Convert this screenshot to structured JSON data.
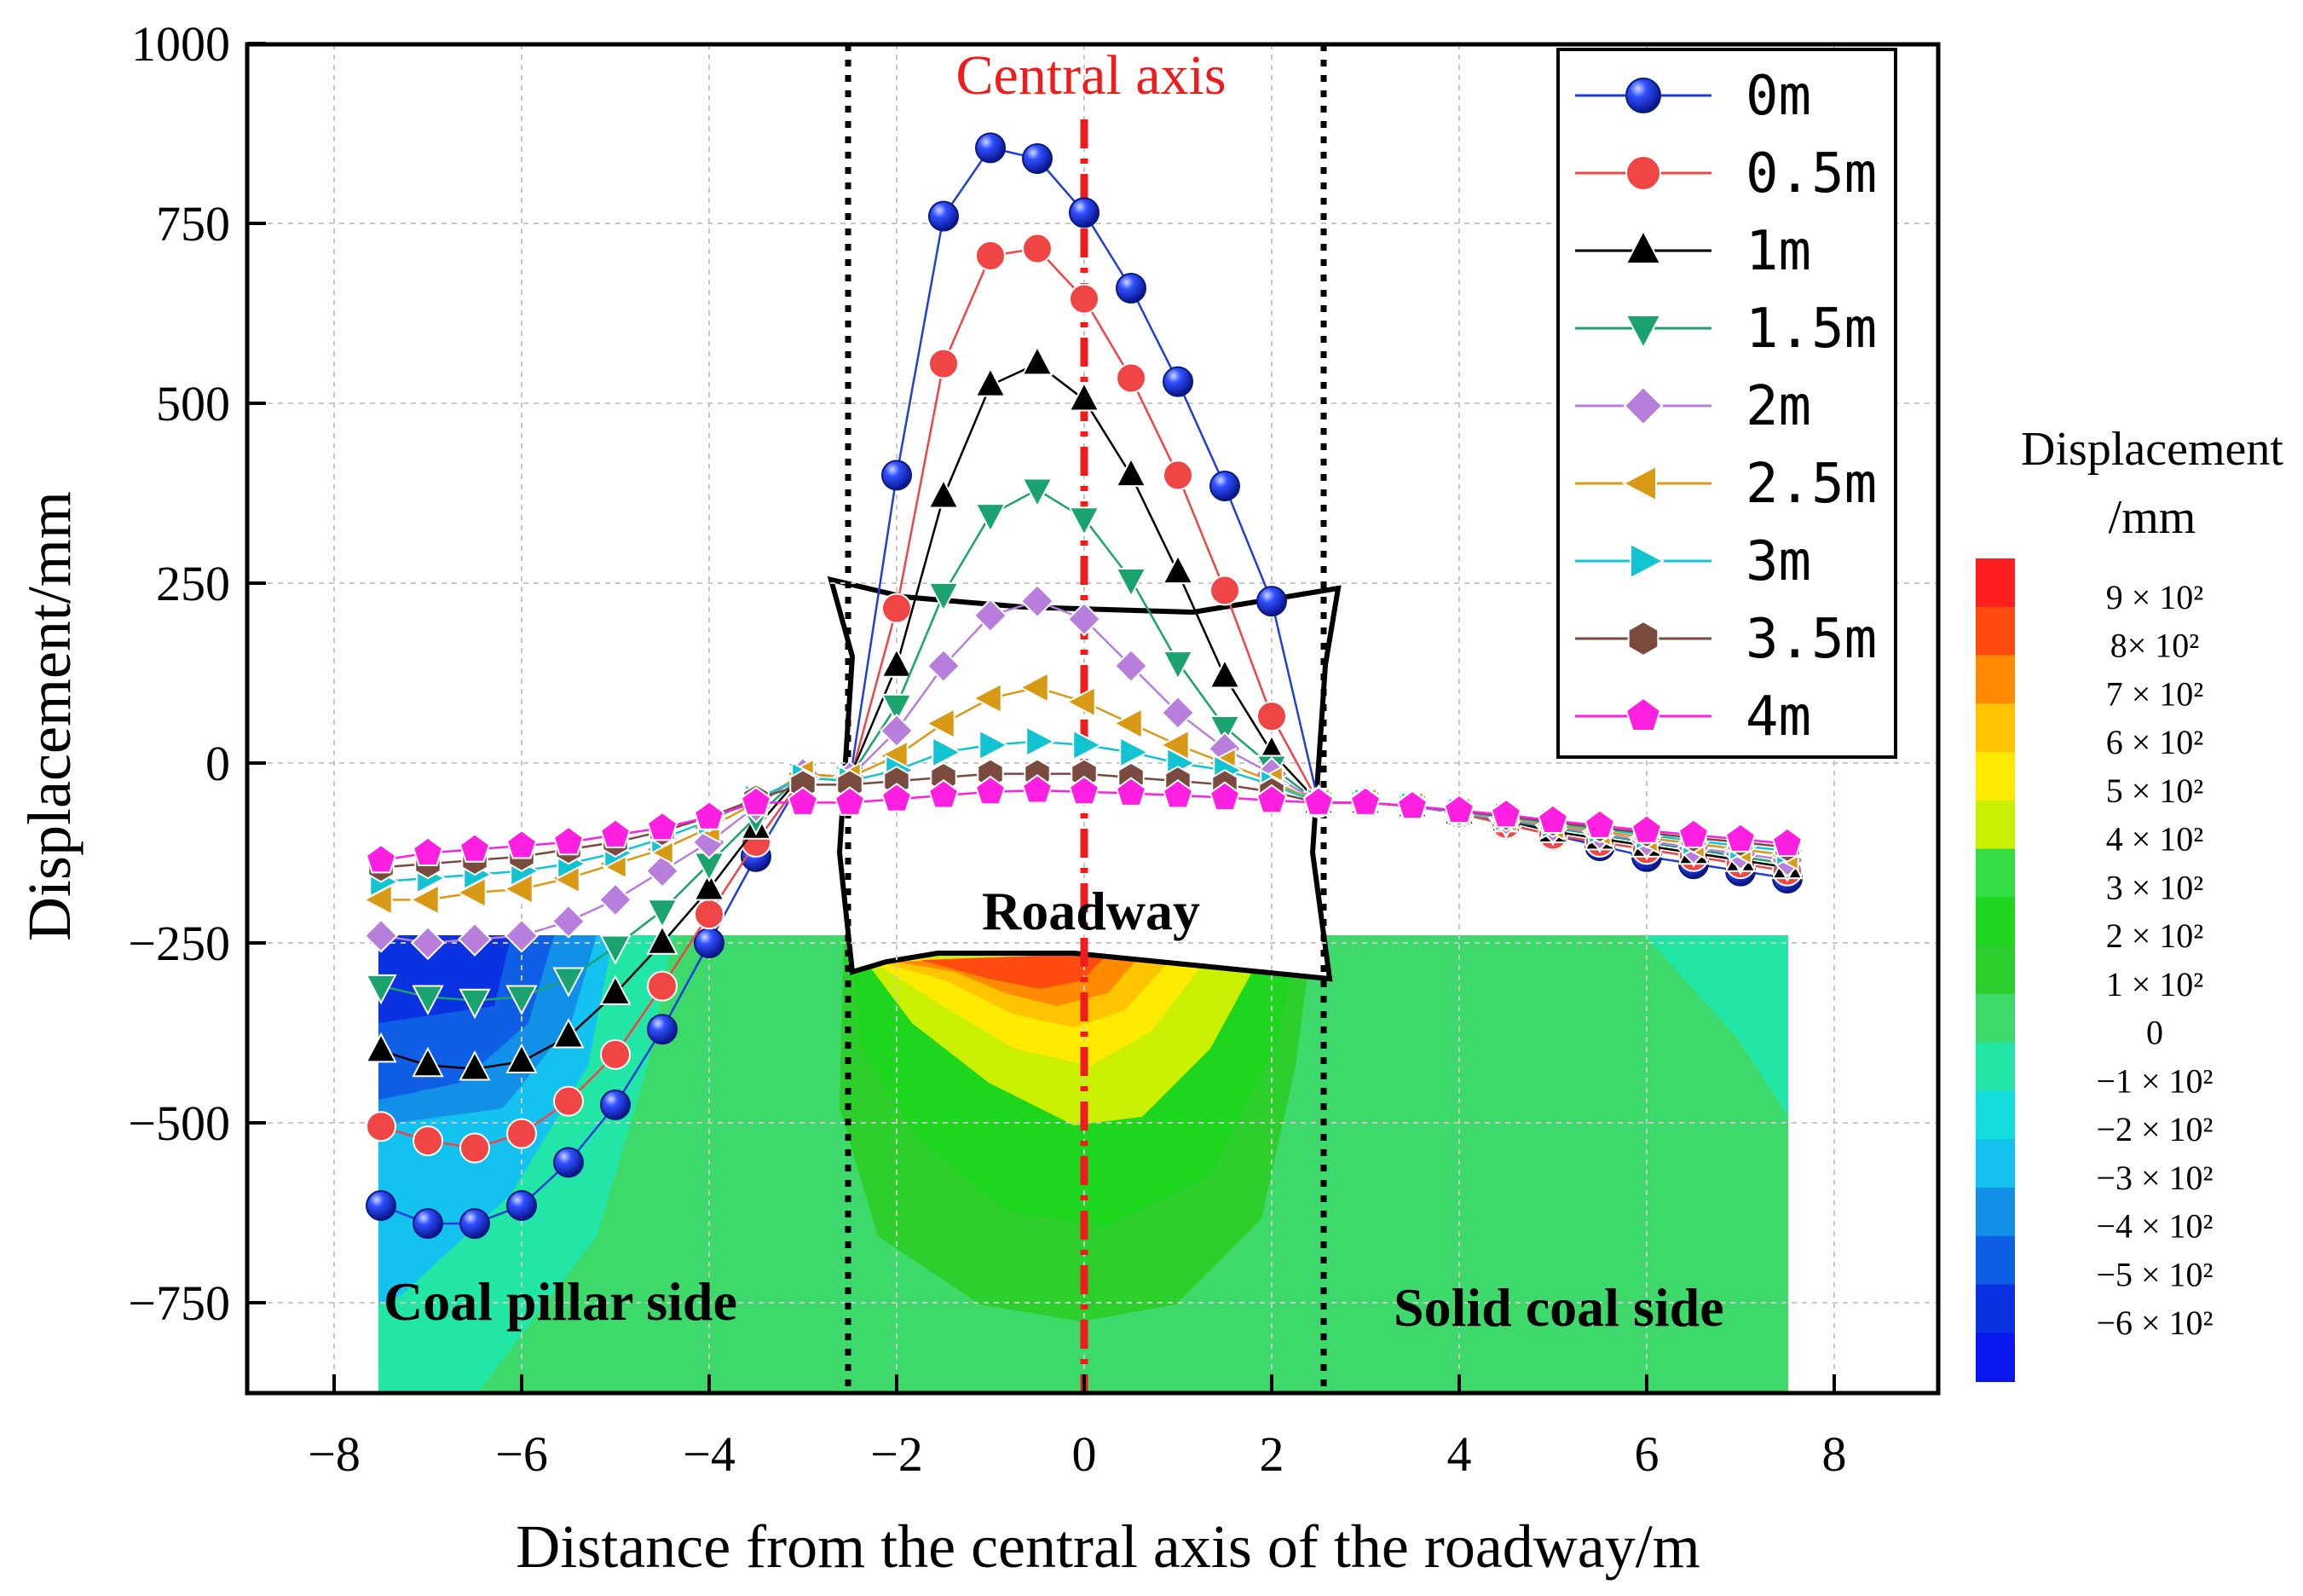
{
  "chart_data": {
    "type": "line",
    "title": "",
    "xlabel": "Distance from the central axis of the roadway/m",
    "ylabel": "Displacement/mm",
    "xlim": [
      -9,
      9
    ],
    "ylim": [
      -875,
      1000
    ],
    "x_ticks": [
      -8,
      -6,
      -4,
      -2,
      0,
      2,
      4,
      6,
      8
    ],
    "x_tick_labels": [
      "−8",
      "−6",
      "−4",
      "−2",
      "0",
      "2",
      "4",
      "6",
      "8"
    ],
    "y_ticks": [
      1000,
      750,
      500,
      250,
      0,
      -250,
      -500,
      -750
    ],
    "y_tick_labels": [
      "1000",
      "750",
      "500",
      "250",
      "0",
      "−250",
      "−500",
      "−750"
    ],
    "grid": true,
    "legend_position": "top-right",
    "x": [
      -7.5,
      -7,
      -6.5,
      -6,
      -5.5,
      -5,
      -4.5,
      -4,
      -3.5,
      -3,
      -2.5,
      -2,
      -1.5,
      -1,
      -0.5,
      0,
      0.5,
      1,
      1.5,
      2,
      2.5,
      3,
      3.5,
      4,
      4.5,
      5,
      5.5,
      6,
      6.5,
      7,
      7.5
    ],
    "series": [
      {
        "name": "0m",
        "color": "#1f3fd6",
        "marker": "sphere",
        "values": [
          -615,
          -640,
          -640,
          -615,
          -555,
          -475,
          -370,
          -250,
          -130,
          -20,
          -25,
          400,
          760,
          855,
          840,
          765,
          660,
          530,
          385,
          225,
          -55,
          -55,
          -60,
          -70,
          -85,
          -100,
          -115,
          -130,
          -140,
          -150,
          -160
        ]
      },
      {
        "name": "0.5m",
        "color": "#f04545",
        "marker": "circle",
        "values": [
          -505,
          -525,
          -535,
          -515,
          -470,
          -405,
          -310,
          -210,
          -110,
          -20,
          -25,
          215,
          555,
          705,
          715,
          645,
          535,
          400,
          240,
          65,
          -55,
          -55,
          -60,
          -70,
          -85,
          -100,
          -110,
          -120,
          -130,
          -140,
          -150
        ]
      },
      {
        "name": "1m",
        "color": "#000000",
        "marker": "triangle-up",
        "values": [
          -400,
          -420,
          -425,
          -415,
          -380,
          -320,
          -250,
          -175,
          -90,
          -15,
          -20,
          135,
          370,
          525,
          555,
          505,
          400,
          265,
          120,
          15,
          -55,
          -55,
          -60,
          -70,
          -80,
          -95,
          -105,
          -115,
          -125,
          -135,
          -145
        ]
      },
      {
        "name": "1.5m",
        "color": "#1aa36e",
        "marker": "triangle-down",
        "values": [
          -310,
          -325,
          -330,
          -325,
          -300,
          -255,
          -205,
          -140,
          -75,
          -15,
          -20,
          80,
          235,
          345,
          380,
          340,
          255,
          140,
          50,
          -5,
          -55,
          -55,
          -60,
          -70,
          -80,
          -90,
          -100,
          -110,
          -120,
          -130,
          -140
        ]
      },
      {
        "name": "2m",
        "color": "#b77fdb",
        "marker": "diamond",
        "values": [
          -240,
          -250,
          -245,
          -240,
          -220,
          -190,
          -150,
          -110,
          -60,
          -15,
          -20,
          45,
          135,
          205,
          225,
          200,
          135,
          70,
          20,
          -15,
          -55,
          -55,
          -60,
          -70,
          -78,
          -88,
          -98,
          -108,
          -118,
          -126,
          -135
        ]
      },
      {
        "name": "2.5m",
        "color": "#d89a14",
        "marker": "triangle-left",
        "values": [
          -190,
          -190,
          -180,
          -175,
          -160,
          -140,
          -120,
          -90,
          -55,
          -15,
          -20,
          10,
          55,
          90,
          105,
          85,
          55,
          25,
          0,
          -25,
          -55,
          -55,
          -60,
          -68,
          -76,
          -86,
          -95,
          -104,
          -112,
          -120,
          -128
        ]
      },
      {
        "name": "3m",
        "color": "#12c4d1",
        "marker": "triangle-right",
        "values": [
          -165,
          -160,
          -155,
          -150,
          -140,
          -125,
          -105,
          -80,
          -50,
          -20,
          -25,
          -10,
          15,
          25,
          30,
          25,
          15,
          0,
          -10,
          -30,
          -55,
          -55,
          -60,
          -68,
          -75,
          -84,
          -92,
          -100,
          -108,
          -115,
          -122
        ]
      },
      {
        "name": "3.5m",
        "color": "#7a4a3e",
        "marker": "hexagon",
        "values": [
          -145,
          -140,
          -135,
          -130,
          -120,
          -110,
          -95,
          -75,
          -50,
          -30,
          -30,
          -25,
          -20,
          -15,
          -15,
          -15,
          -20,
          -25,
          -30,
          -40,
          -55,
          -55,
          -60,
          -67,
          -74,
          -82,
          -90,
          -97,
          -104,
          -110,
          -117
        ]
      },
      {
        "name": "4m",
        "color": "#ff1fe0",
        "marker": "pentagon",
        "values": [
          -135,
          -125,
          -120,
          -115,
          -110,
          -100,
          -90,
          -75,
          -55,
          -55,
          -55,
          -50,
          -45,
          -40,
          -38,
          -40,
          -42,
          -45,
          -48,
          -52,
          -55,
          -55,
          -60,
          -66,
          -72,
          -80,
          -87,
          -94,
          -100,
          -106,
          -112
        ]
      }
    ],
    "annotations": {
      "central_axis": "Central axis",
      "roadway": "Roadway",
      "coal_pillar_side": "Coal pillar side",
      "solid_coal_side": "Solid coal side"
    },
    "colorbar": {
      "title_line1": "Displacement",
      "title_line2": "/mm",
      "levels": [
        "9 × 10²",
        "8× 10²",
        "7 × 10²",
        "6 × 10²",
        "5 × 10²",
        "4 × 10²",
        "3 × 10²",
        "2 × 10²",
        "1 × 10²",
        "0",
        "−1 × 10²",
        "−2 × 10²",
        "−3 × 10²",
        "−4 × 10²",
        "−5 × 10²",
        "−6 × 10²"
      ],
      "colors": [
        "#ff1e1e",
        "#ff4a10",
        "#ff8a00",
        "#ffc400",
        "#ffea00",
        "#c8f000",
        "#33dd44",
        "#1ed61e",
        "#2ccf2c",
        "#3ed96b",
        "#22e6a5",
        "#15dede",
        "#14c2f0",
        "#1290e8",
        "#0f5fe6",
        "#0a32e0",
        "#0818ee"
      ]
    }
  }
}
